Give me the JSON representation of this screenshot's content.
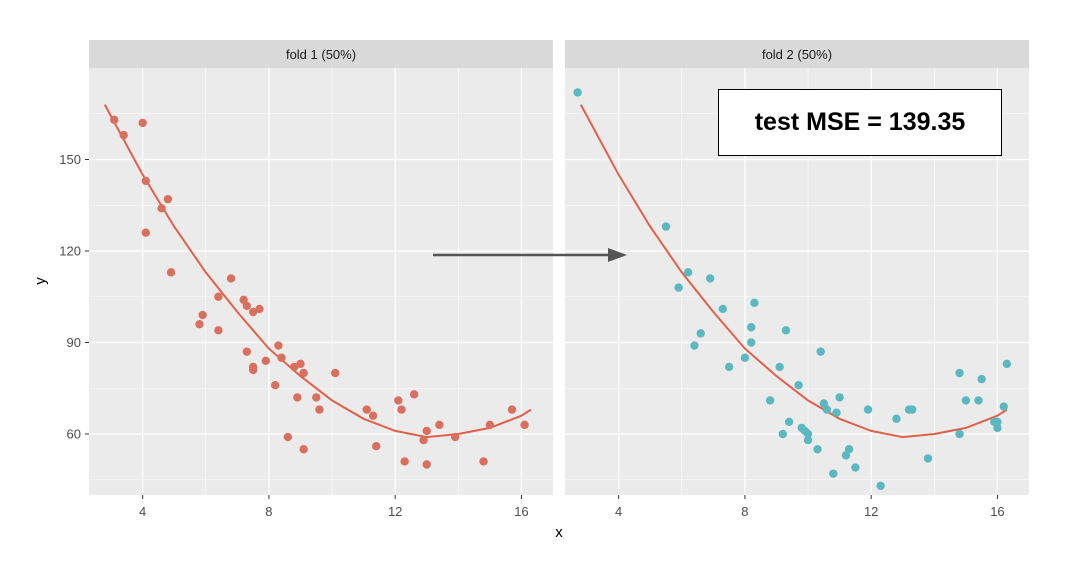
{
  "chart_data": {
    "type": "scatter",
    "x_label": "x",
    "y_label": "y",
    "x_range": [
      2.3,
      17.0
    ],
    "y_range": [
      40,
      180
    ],
    "x_ticks": [
      4,
      8,
      12,
      16
    ],
    "y_ticks": [
      60,
      90,
      120,
      150
    ],
    "grid": true,
    "colors": {
      "panel_bg": "#ebebeb",
      "strip_bg": "#d9d9d9",
      "grid": "#ffffff",
      "fold1_points": "#d9705f",
      "fold2_points": "#5cb8c0",
      "fit_line": "#e0604a",
      "arrow": "#555555"
    },
    "fit_curve": {
      "x": [
        2.8,
        4,
        5,
        6,
        7,
        8,
        9,
        10,
        11,
        12,
        13,
        14,
        15,
        16,
        16.3
      ],
      "y": [
        168,
        145,
        128,
        113,
        100,
        88,
        79,
        71,
        65,
        61,
        59,
        60,
        62,
        66,
        68
      ]
    },
    "panels": [
      {
        "label": "fold 1 (50%)",
        "points": [
          [
            3.1,
            163
          ],
          [
            3.4,
            158
          ],
          [
            4.0,
            162
          ],
          [
            4.1,
            143
          ],
          [
            4.1,
            126
          ],
          [
            4.6,
            134
          ],
          [
            4.8,
            137
          ],
          [
            4.9,
            113
          ],
          [
            5.8,
            96
          ],
          [
            5.9,
            99
          ],
          [
            6.4,
            105
          ],
          [
            6.4,
            94
          ],
          [
            6.8,
            111
          ],
          [
            7.2,
            104
          ],
          [
            7.3,
            102
          ],
          [
            7.3,
            87
          ],
          [
            7.5,
            100
          ],
          [
            7.5,
            82
          ],
          [
            7.5,
            81
          ],
          [
            7.7,
            101
          ],
          [
            7.9,
            84
          ],
          [
            8.2,
            76
          ],
          [
            8.3,
            89
          ],
          [
            8.4,
            85
          ],
          [
            8.6,
            59
          ],
          [
            8.8,
            82
          ],
          [
            8.9,
            72
          ],
          [
            9.0,
            83
          ],
          [
            9.1,
            80
          ],
          [
            9.1,
            55
          ],
          [
            9.5,
            72
          ],
          [
            9.6,
            68
          ],
          [
            10.1,
            80
          ],
          [
            11.1,
            68
          ],
          [
            11.3,
            66
          ],
          [
            11.4,
            56
          ],
          [
            12.1,
            71
          ],
          [
            12.2,
            68
          ],
          [
            12.3,
            51
          ],
          [
            12.6,
            73
          ],
          [
            12.9,
            58
          ],
          [
            13.0,
            61
          ],
          [
            13.0,
            50
          ],
          [
            13.4,
            63
          ],
          [
            13.9,
            59
          ],
          [
            14.8,
            51
          ],
          [
            15.0,
            63
          ],
          [
            15.7,
            68
          ],
          [
            16.1,
            63
          ]
        ]
      },
      {
        "label": "fold 2 (50%)",
        "points": [
          [
            2.7,
            172
          ],
          [
            5.5,
            128
          ],
          [
            5.9,
            108
          ],
          [
            6.2,
            113
          ],
          [
            6.4,
            89
          ],
          [
            6.6,
            93
          ],
          [
            6.9,
            111
          ],
          [
            7.3,
            101
          ],
          [
            7.5,
            82
          ],
          [
            8.0,
            85
          ],
          [
            8.2,
            95
          ],
          [
            8.2,
            90
          ],
          [
            8.3,
            103
          ],
          [
            8.8,
            71
          ],
          [
            9.1,
            82
          ],
          [
            9.2,
            60
          ],
          [
            9.3,
            94
          ],
          [
            9.4,
            64
          ],
          [
            9.7,
            76
          ],
          [
            9.8,
            62
          ],
          [
            9.9,
            61
          ],
          [
            10.0,
            58
          ],
          [
            10.0,
            60
          ],
          [
            10.3,
            55
          ],
          [
            10.4,
            87
          ],
          [
            10.5,
            70
          ],
          [
            10.6,
            68
          ],
          [
            10.8,
            47
          ],
          [
            10.9,
            67
          ],
          [
            11.0,
            72
          ],
          [
            11.2,
            53
          ],
          [
            11.3,
            55
          ],
          [
            11.5,
            49
          ],
          [
            11.9,
            68
          ],
          [
            12.3,
            43
          ],
          [
            12.8,
            65
          ],
          [
            13.2,
            68
          ],
          [
            13.3,
            68
          ],
          [
            13.8,
            52
          ],
          [
            14.8,
            80
          ],
          [
            14.8,
            60
          ],
          [
            15.0,
            71
          ],
          [
            15.4,
            71
          ],
          [
            15.5,
            78
          ],
          [
            15.9,
            64
          ],
          [
            16.0,
            64
          ],
          [
            16.0,
            62
          ],
          [
            16.2,
            69
          ],
          [
            16.3,
            83
          ]
        ]
      }
    ],
    "annotation": "test MSE = 139.35"
  }
}
